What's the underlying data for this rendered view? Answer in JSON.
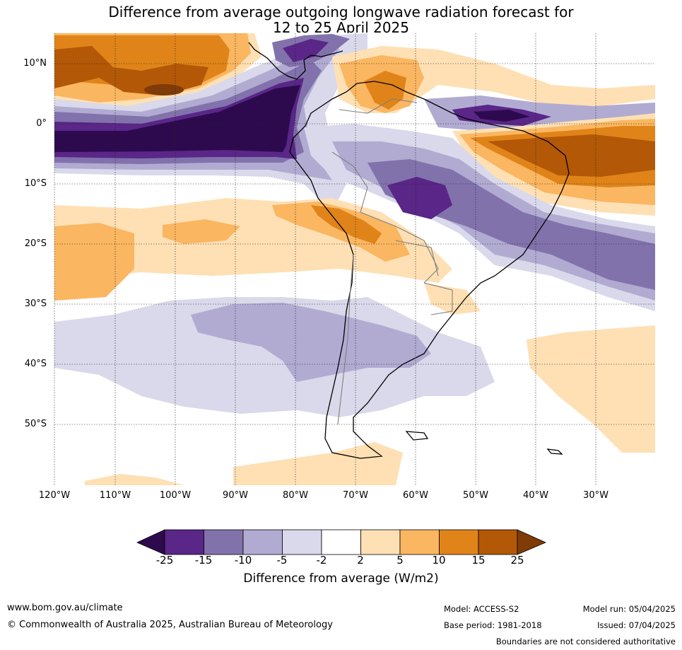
{
  "title": {
    "line1": "Difference from average outgoing longwave radiation forecast for",
    "line2": "12 to 25 April 2025"
  },
  "map": {
    "lat_labels": [
      "10°N",
      "0°",
      "10°S",
      "20°S",
      "30°S",
      "40°S",
      "50°S"
    ],
    "lon_labels": [
      "120°W",
      "110°W",
      "100°W",
      "90°W",
      "80°W",
      "70°W",
      "60°W",
      "50°W",
      "40°W",
      "30°W"
    ],
    "colors": {
      "neg25": "#2d0a4d",
      "neg15": "#5a2688",
      "neg10": "#8272ac",
      "neg5": "#b1abd2",
      "neg2": "#d9d9eb",
      "zero": "#ffffff",
      "pos2": "#fee0b4",
      "pos5": "#fbb661",
      "pos10": "#e08419",
      "pos15": "#b35807",
      "pos25": "#7f3b08",
      "land_outline": "#000000",
      "border": "#808080"
    }
  },
  "colorbar": {
    "ticks": [
      "-25",
      "-15",
      "-10",
      "-5",
      "-2",
      "2",
      "5",
      "10",
      "15",
      "25"
    ],
    "title": "Difference from average (W/m2)"
  },
  "footer": {
    "website": "www.bom.gov.au/climate",
    "copyright": "© Commonwealth of Australia 2025, Australian Bureau of Meteorology",
    "model": "Model: ACCESS-S2",
    "base_period": "Base period: 1981-2018",
    "model_run": "Model run: 05/04/2025",
    "issued": "Issued: 07/04/2025",
    "disclaimer": "Boundaries are not considered authoritative"
  }
}
